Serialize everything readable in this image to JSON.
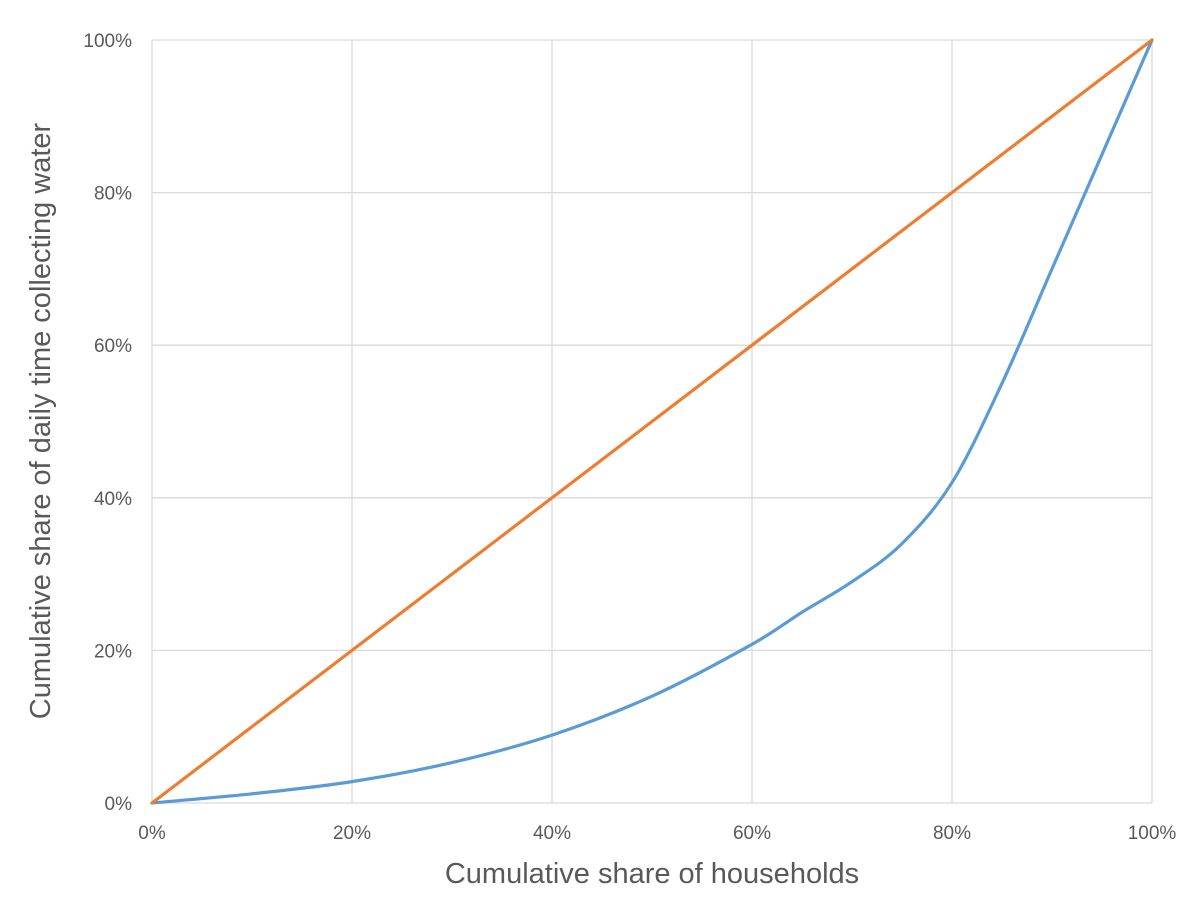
{
  "chart_data": {
    "type": "line",
    "xlabel": "Cumulative share of households",
    "ylabel": "Cumulative share of daily time collecting water",
    "xlim": [
      0,
      100
    ],
    "ylim": [
      0,
      100
    ],
    "x_ticks": [
      "0%",
      "20%",
      "40%",
      "60%",
      "80%",
      "100%"
    ],
    "y_ticks": [
      "0%",
      "20%",
      "40%",
      "60%",
      "80%",
      "100%"
    ],
    "grid": true,
    "legend": "none",
    "series": [
      {
        "color": "#5b9bd5",
        "x": [
          0,
          10,
          20,
          30,
          40,
          50,
          60,
          65,
          70,
          75,
          80,
          85,
          90,
          95,
          100
        ],
        "y": [
          0,
          1.2,
          2.8,
          5.3,
          8.9,
          14.0,
          20.8,
          25.0,
          29.0,
          34.0,
          42.0,
          55.0,
          70.0,
          85.0,
          100.0
        ]
      },
      {
        "color": "#ed7d31",
        "x": [
          0,
          100
        ],
        "y": [
          0,
          100
        ]
      }
    ]
  }
}
